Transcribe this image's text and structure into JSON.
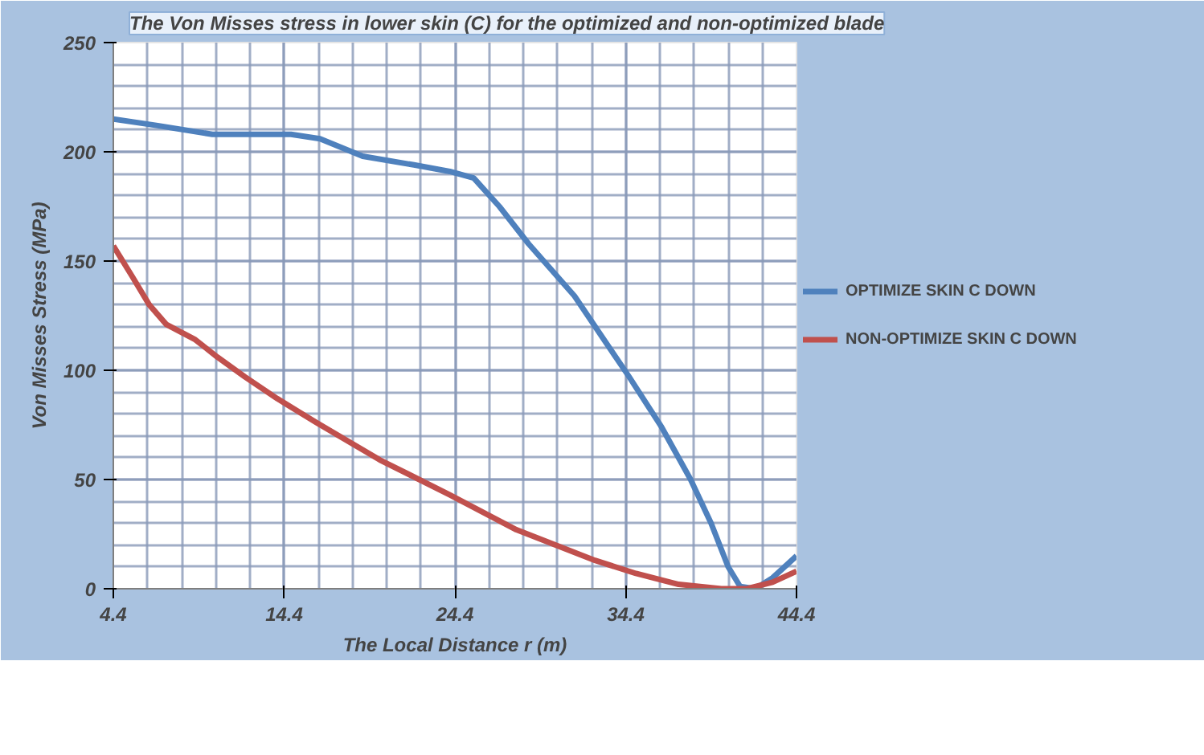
{
  "chart_data": {
    "type": "line",
    "title": "The Von Misses stress in lower skin (C) for the optimized and non-optimized blade",
    "xlabel": "The Local Distance r (m)",
    "ylabel": "Von Misses Stress (MPa)",
    "xlim": [
      4.4,
      44.4
    ],
    "ylim": [
      0,
      250
    ],
    "xticks": [
      4.4,
      14.4,
      24.4,
      34.4,
      44.4
    ],
    "yticks": [
      0,
      50,
      100,
      150,
      200,
      250
    ],
    "grid": true,
    "legend": "right",
    "line_style": "solid",
    "series": [
      {
        "name": "OPTIMIZE SKIN C DOWN",
        "color": "#4f81bd",
        "x": [
          4.4,
          7.0,
          10.2,
          14.8,
          16.5,
          19.0,
          22.0,
          24.1,
          25.5,
          27.0,
          28.7,
          31.4,
          34.6,
          36.5,
          38.2,
          39.4,
          40.4,
          41.1,
          42.0,
          43.0,
          44.4
        ],
        "values": [
          215,
          212,
          208,
          208,
          206,
          198,
          194,
          191,
          188,
          175,
          158,
          134,
          97,
          74,
          50,
          30,
          10,
          1,
          0,
          5,
          15
        ]
      },
      {
        "name": "NON-OPTIMIZE SKIN C DOWN",
        "color": "#c0504d",
        "x": [
          4.4,
          5.5,
          6.5,
          7.5,
          9.2,
          10.5,
          12.1,
          14.0,
          16.3,
          20.0,
          24.1,
          28.0,
          32.6,
          35.0,
          37.5,
          40.0,
          41.5,
          43.0,
          44.4
        ],
        "values": [
          157,
          143,
          130,
          121,
          114,
          106,
          97,
          87,
          76,
          59,
          43,
          27,
          13,
          7,
          2,
          0,
          0,
          3,
          8
        ]
      }
    ]
  }
}
